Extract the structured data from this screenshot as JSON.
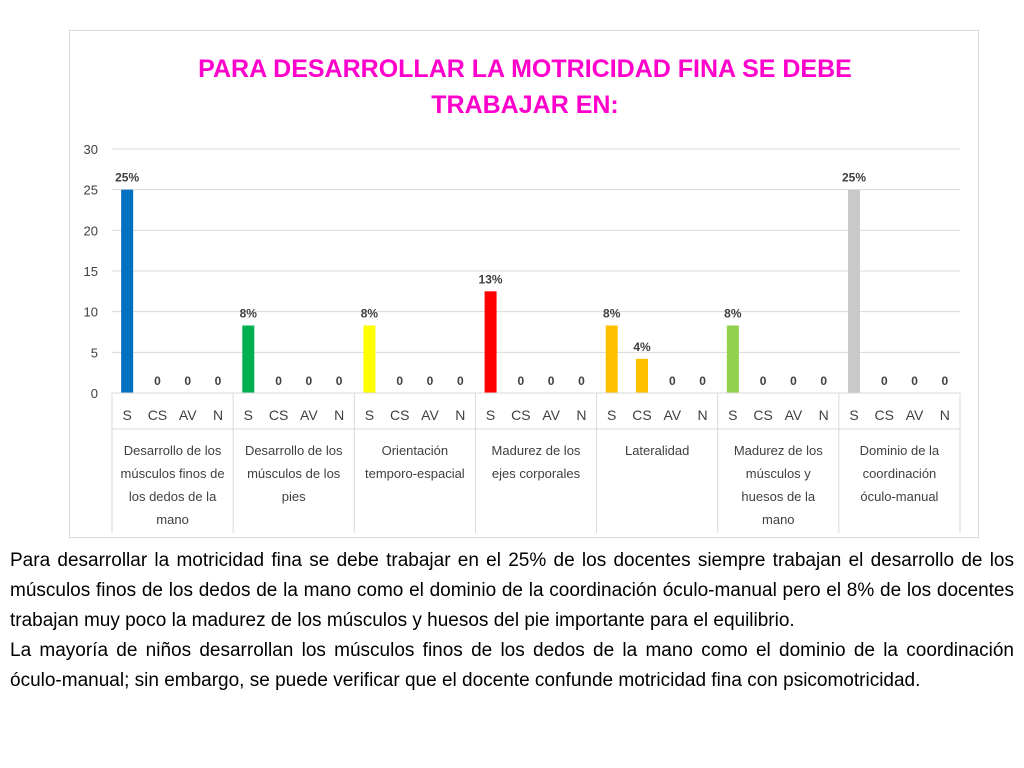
{
  "chart_data": {
    "type": "bar",
    "title_lines": [
      "PARA DESARROLLAR LA MOTRICIDAD FINA SE DEBE",
      "TRABAJAR EN:"
    ],
    "ylim": [
      0,
      30
    ],
    "yticks": [
      "0",
      "5",
      "10",
      "15",
      "20",
      "25",
      "30"
    ],
    "grid": true,
    "legend": "none",
    "groups": [
      {
        "label_lines": [
          "Desarrollo de los",
          "músculos finos de",
          "los dedos de la",
          "mano"
        ],
        "categories": [
          "S",
          "CS",
          "AV",
          "N"
        ],
        "values": [
          25,
          0,
          0,
          0
        ],
        "labels": [
          "25%",
          "0",
          "0",
          "0"
        ],
        "color": "#0070c0"
      },
      {
        "label_lines": [
          "Desarrollo de los",
          "músculos de los",
          "pies"
        ],
        "categories": [
          "S",
          "CS",
          "AV",
          "N"
        ],
        "values": [
          8.3,
          0,
          0,
          0
        ],
        "labels": [
          "8%",
          "0",
          "0",
          "0"
        ],
        "color": "#00b050"
      },
      {
        "label_lines": [
          "Orientación",
          "temporo-espacial"
        ],
        "categories": [
          "S",
          "CS",
          "AV",
          "N"
        ],
        "values": [
          8.3,
          0,
          0,
          0
        ],
        "labels": [
          "8%",
          "0",
          "0",
          "0"
        ],
        "color": "#ffff00"
      },
      {
        "label_lines": [
          "Madurez de los",
          "ejes corporales"
        ],
        "categories": [
          "S",
          "CS",
          "AV",
          "N"
        ],
        "values": [
          12.5,
          0,
          0,
          0
        ],
        "labels": [
          "13%",
          "0",
          "0",
          "0"
        ],
        "color": "#ff0000"
      },
      {
        "label_lines": [
          "Lateralidad"
        ],
        "categories": [
          "S",
          "CS",
          "AV",
          "N"
        ],
        "values": [
          8.3,
          4.2,
          0,
          0
        ],
        "labels": [
          "8%",
          "4%",
          "0",
          "0"
        ],
        "color": "#ffc000"
      },
      {
        "label_lines": [
          "Madurez de los",
          "músculos y",
          "huesos de la",
          "mano"
        ],
        "categories": [
          "S",
          "CS",
          "AV",
          "N"
        ],
        "values": [
          8.3,
          0,
          0,
          0
        ],
        "labels": [
          "8%",
          "0",
          "0",
          "0"
        ],
        "color": "#92d050"
      },
      {
        "label_lines": [
          "Dominio de la",
          "coordinación",
          "óculo-manual"
        ],
        "categories": [
          "S",
          "CS",
          "AV",
          "N"
        ],
        "values": [
          25,
          0,
          0,
          0
        ],
        "labels": [
          "25%",
          "0",
          "0",
          "0"
        ],
        "color": "#c9c9c9"
      }
    ]
  },
  "description": {
    "paragraph1": "Para desarrollar la motricidad fina se debe trabajar en el 25% de los docentes siempre trabajan el desarrollo de los músculos finos de los dedos de la mano como el dominio de la coordinación óculo-manual pero el 8% de los docentes trabajan muy poco la madurez de los músculos y huesos del pie importante para el equilibrio.",
    "paragraph2": "La mayoría de niños desarrollan los músculos finos de los dedos de la mano como el dominio de la coordinación óculo-manual; sin embargo, se puede verificar que el docente confunde motricidad fina con psicomotricidad."
  }
}
